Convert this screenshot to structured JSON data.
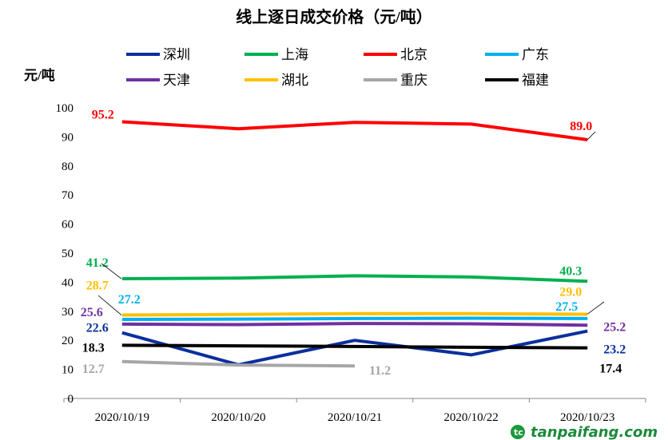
{
  "chart_data": {
    "type": "line",
    "title": "线上逐日成交价格（元/吨）",
    "ylabel": "元/吨",
    "xlabel": "",
    "categories": [
      "2020/10/19",
      "2020/10/20",
      "2020/10/21",
      "2020/10/22",
      "2020/10/23"
    ],
    "ylim": [
      0,
      100
    ],
    "yticks": [
      0,
      10,
      20,
      30,
      40,
      50,
      60,
      70,
      80,
      90,
      100
    ],
    "grid": false,
    "legend_position": "top",
    "series": [
      {
        "name": "深圳",
        "color": "#0a2f9e",
        "values": [
          22.6,
          11.6,
          20.0,
          15.0,
          23.2
        ],
        "labels": [
          "22.6",
          "23.2"
        ]
      },
      {
        "name": "上海",
        "color": "#00b050",
        "values": [
          41.2,
          41.4,
          42.2,
          41.8,
          40.3
        ],
        "labels": [
          "41.2",
          "40.3"
        ]
      },
      {
        "name": "北京",
        "color": "#ff0000",
        "values": [
          95.2,
          92.8,
          95.0,
          94.4,
          89.0
        ],
        "labels": [
          "95.2",
          "89.0"
        ]
      },
      {
        "name": "广东",
        "color": "#00b0f0",
        "values": [
          27.2,
          27.3,
          27.5,
          27.6,
          27.5
        ],
        "labels": [
          "27.2",
          "27.5"
        ]
      },
      {
        "name": "天津",
        "color": "#7030a0",
        "values": [
          25.6,
          25.4,
          25.8,
          25.7,
          25.2
        ],
        "labels": [
          "25.6",
          "25.2"
        ]
      },
      {
        "name": "湖北",
        "color": "#ffc000",
        "values": [
          28.7,
          28.9,
          29.2,
          29.2,
          29.0
        ],
        "labels": [
          "28.7",
          "29.0"
        ]
      },
      {
        "name": "重庆",
        "color": "#a6a6a6",
        "values": [
          12.7,
          11.5,
          11.2,
          null,
          null
        ],
        "labels": [
          "12.7",
          "11.2"
        ]
      },
      {
        "name": "福建",
        "color": "#000000",
        "values": [
          18.3,
          18.1,
          17.9,
          17.6,
          17.4
        ],
        "labels": [
          "18.3",
          "17.4"
        ]
      }
    ]
  },
  "watermark": {
    "site": "tanpaifang.com"
  }
}
